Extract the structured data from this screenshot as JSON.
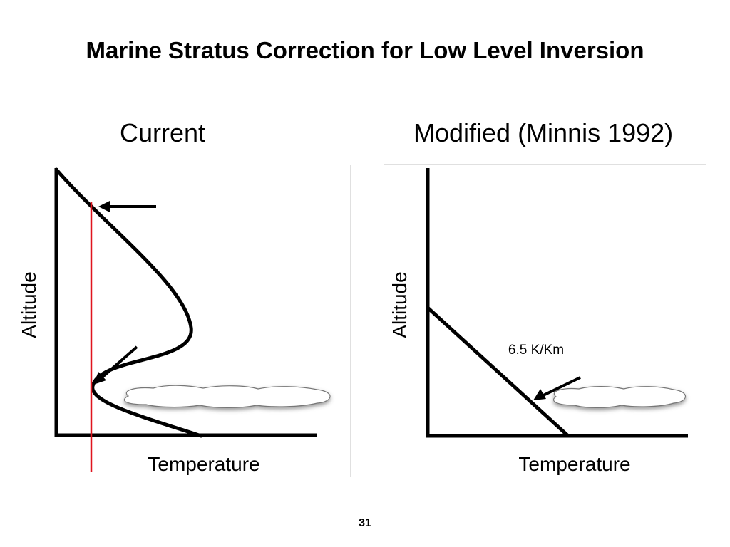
{
  "slide": {
    "title": "Marine Stratus Correction for Low Level Inversion",
    "page_number": "31"
  },
  "panels": [
    {
      "heading": "Current",
      "ylabel": "Altitude",
      "xlabel": "Temperature"
    },
    {
      "heading": "Modified (Minnis 1992)",
      "ylabel": "Altitude",
      "xlabel": "Temperature",
      "lapse_rate_label": "6.5 K/Km"
    }
  ],
  "colors": {
    "profile": "#000000",
    "reference_line": "#e0141e",
    "cloud_fill": "#ffffff",
    "cloud_shadow": "#9a9a9a",
    "divider": "#d6d6d6"
  }
}
